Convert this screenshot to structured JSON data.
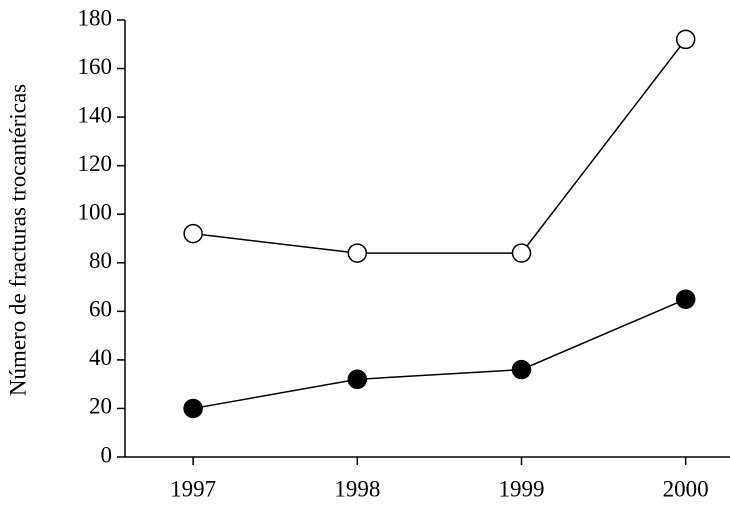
{
  "chart_data": {
    "type": "line",
    "y_label": "Número de fracturas trocantéricas",
    "x": [
      1997,
      1998,
      1999,
      2000
    ],
    "xlim": [
      1996.585,
      2000.27
    ],
    "xticks": [
      1997,
      1998,
      1999,
      2000
    ],
    "ylim": [
      0,
      180
    ],
    "yticks": [
      0,
      20,
      40,
      60,
      80,
      100,
      120,
      140,
      160,
      180
    ],
    "series": [
      {
        "color": "#000000",
        "fill": "#ffffff",
        "values": [
          92,
          84,
          84,
          172
        ]
      },
      {
        "color": "#000000",
        "fill": "#000000",
        "values": [
          20,
          32,
          36,
          65
        ]
      }
    ]
  }
}
